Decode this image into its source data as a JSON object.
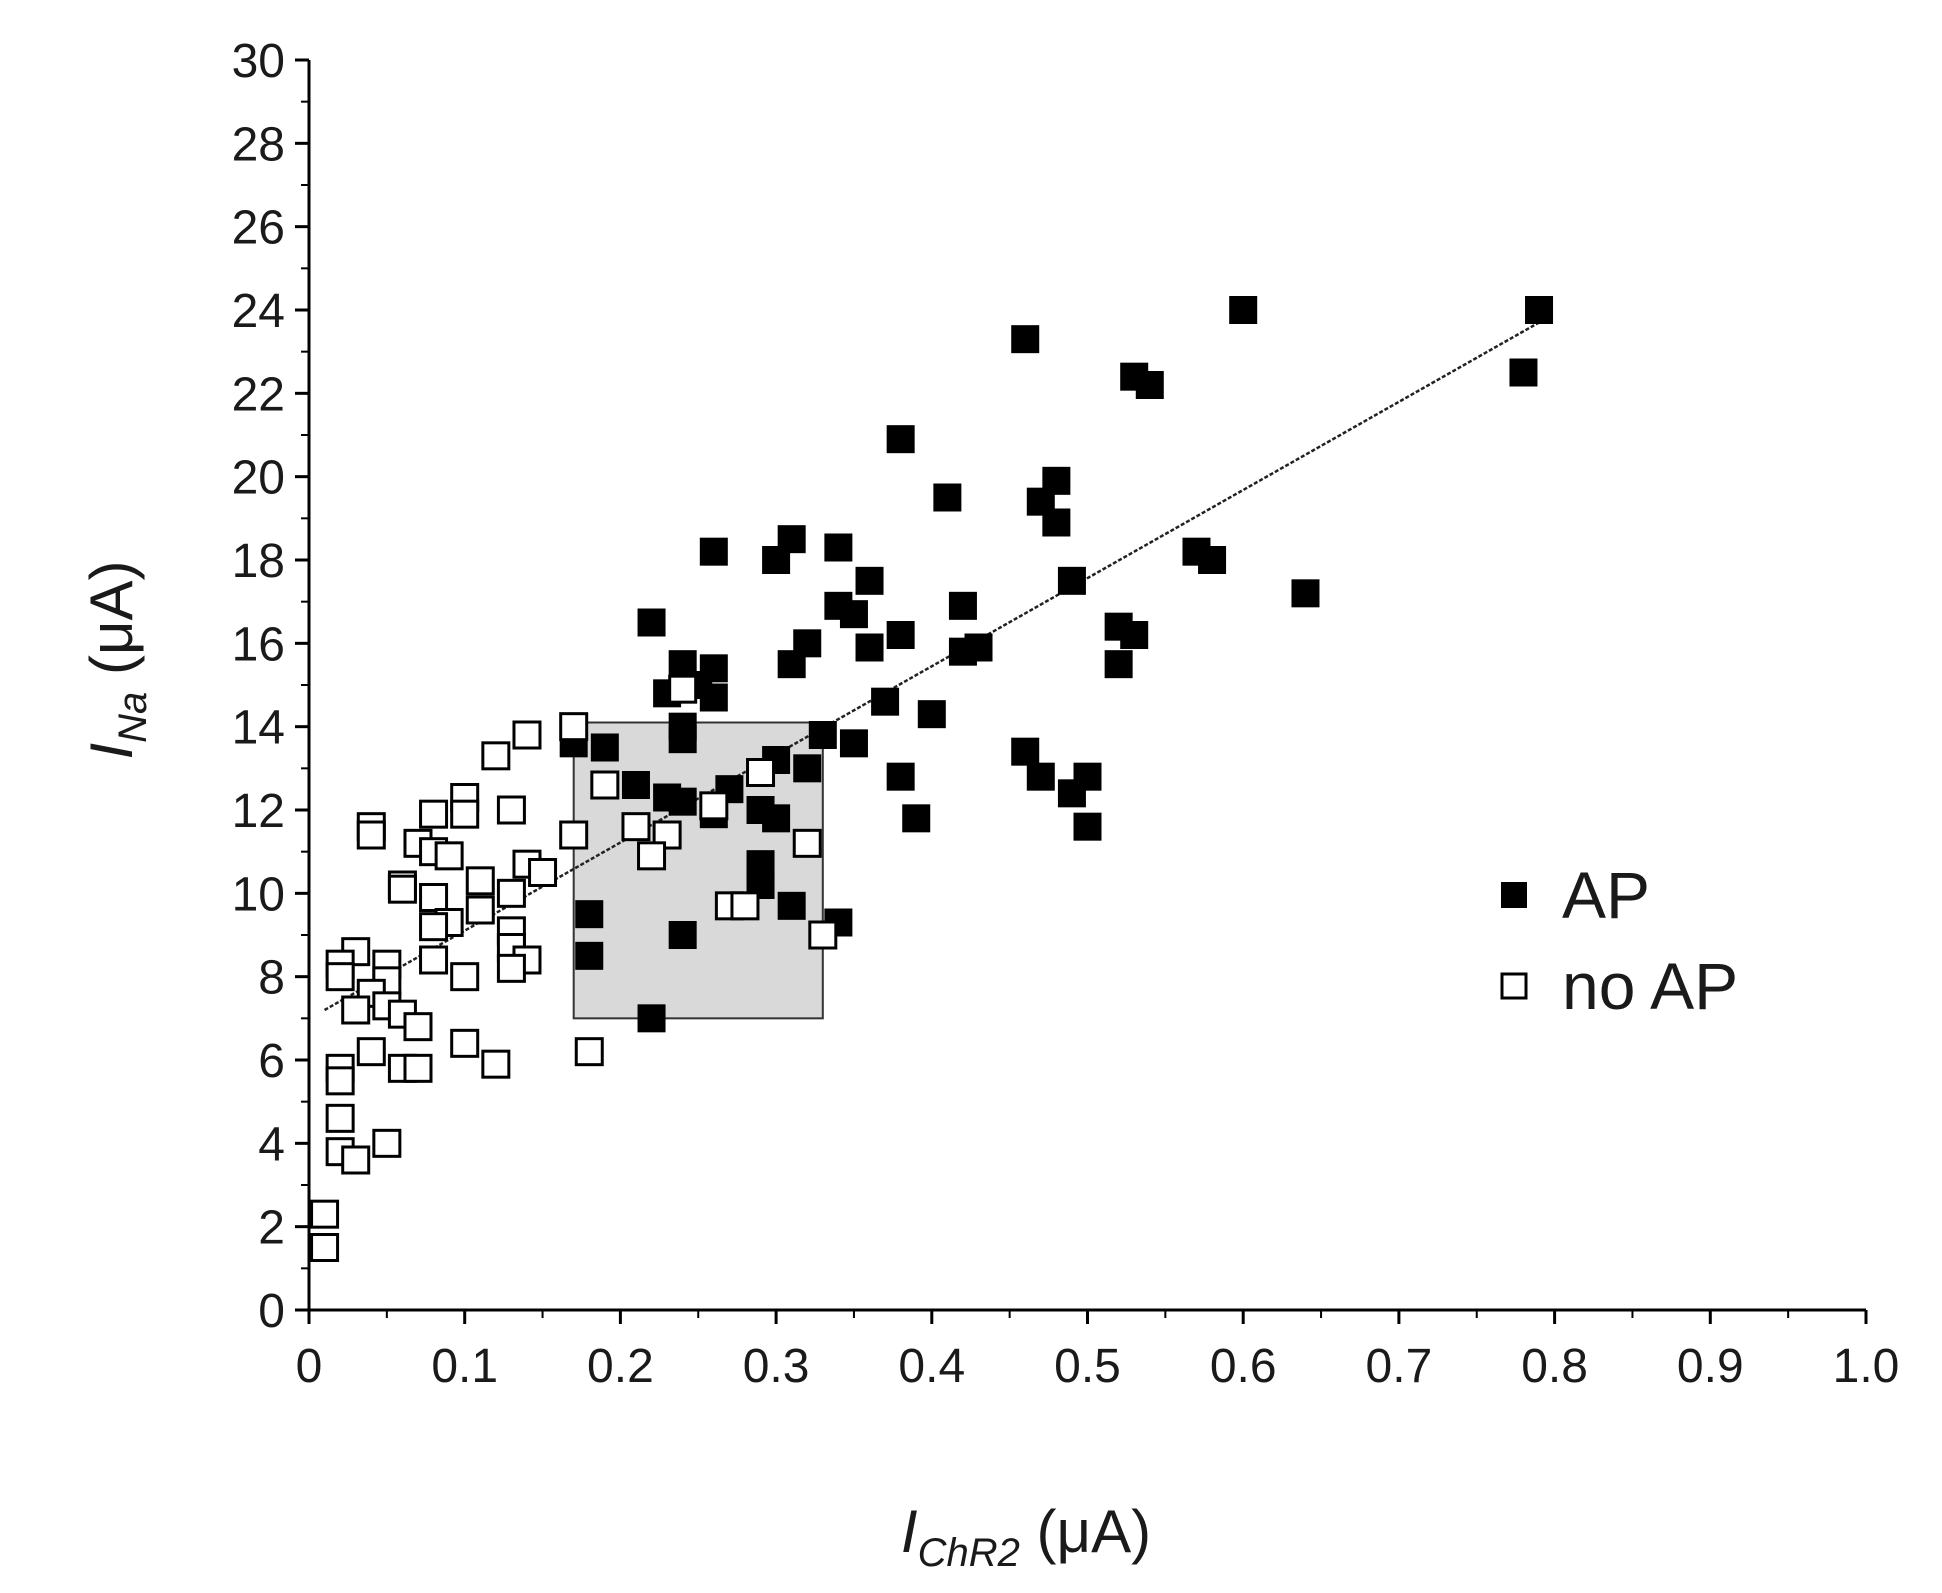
{
  "chart_data": {
    "type": "scatter",
    "xlabel": {
      "base": "I",
      "sub": "ChR2",
      "unit": " (μA)"
    },
    "ylabel": {
      "base": "I",
      "sub": "Na",
      "unit": " (μA)"
    },
    "xlim": [
      0,
      1.0
    ],
    "ylim": [
      0,
      30
    ],
    "x_ticks": [
      0,
      0.1,
      0.2,
      0.3,
      0.4,
      0.5,
      0.6,
      0.7,
      0.8,
      0.9,
      1.0
    ],
    "x_tick_labels": [
      "0",
      "0.1",
      "0.2",
      "0.3",
      "0.4",
      "0.5",
      "0.6",
      "0.7",
      "0.8",
      "0.9",
      "1.0"
    ],
    "y_ticks": [
      0,
      2,
      4,
      6,
      8,
      10,
      12,
      14,
      16,
      18,
      20,
      22,
      24,
      26,
      28,
      30
    ],
    "y_tick_labels": [
      "0",
      "2",
      "4",
      "6",
      "8",
      "10",
      "12",
      "14",
      "16",
      "18",
      "20",
      "22",
      "24",
      "26",
      "28",
      "30"
    ],
    "grid": false,
    "legend": {
      "position": "right",
      "entries": [
        "AP",
        "no AP"
      ]
    },
    "shaded_region": {
      "x": [
        0.17,
        0.33
      ],
      "y": [
        7.0,
        14.1
      ],
      "color": "#d9d9d9"
    },
    "fit_line": {
      "x": [
        0.01,
        0.79
      ],
      "y": [
        7.2,
        23.7
      ]
    },
    "colors": {
      "ap_fill": "#000000",
      "no_ap_fill": "#ffffff",
      "marker_edge": "#000000",
      "axis": "#000000"
    },
    "series": [
      {
        "name": "AP",
        "marker": "filled-square",
        "points": [
          [
            0.79,
            24.0
          ],
          [
            0.78,
            22.5
          ],
          [
            0.6,
            24.0
          ],
          [
            0.46,
            23.3
          ],
          [
            0.53,
            22.4
          ],
          [
            0.54,
            22.2
          ],
          [
            0.38,
            20.9
          ],
          [
            0.41,
            19.5
          ],
          [
            0.48,
            19.9
          ],
          [
            0.47,
            19.4
          ],
          [
            0.48,
            18.9
          ],
          [
            0.26,
            18.2
          ],
          [
            0.31,
            18.5
          ],
          [
            0.3,
            18.0
          ],
          [
            0.34,
            18.3
          ],
          [
            0.57,
            18.2
          ],
          [
            0.58,
            18.0
          ],
          [
            0.36,
            17.5
          ],
          [
            0.49,
            17.5
          ],
          [
            0.64,
            17.2
          ],
          [
            0.34,
            16.9
          ],
          [
            0.35,
            16.7
          ],
          [
            0.42,
            16.9
          ],
          [
            0.22,
            16.5
          ],
          [
            0.38,
            16.2
          ],
          [
            0.52,
            16.4
          ],
          [
            0.53,
            16.2
          ],
          [
            0.32,
            16.0
          ],
          [
            0.36,
            15.9
          ],
          [
            0.43,
            15.9
          ],
          [
            0.42,
            15.8
          ],
          [
            0.31,
            15.5
          ],
          [
            0.52,
            15.5
          ],
          [
            0.24,
            15.5
          ],
          [
            0.26,
            15.4
          ],
          [
            0.25,
            15.0
          ],
          [
            0.23,
            14.8
          ],
          [
            0.26,
            14.7
          ],
          [
            0.37,
            14.6
          ],
          [
            0.4,
            14.3
          ],
          [
            0.24,
            14.0
          ],
          [
            0.24,
            13.7
          ],
          [
            0.33,
            13.8
          ],
          [
            0.17,
            13.6
          ],
          [
            0.19,
            13.5
          ],
          [
            0.35,
            13.6
          ],
          [
            0.46,
            13.4
          ],
          [
            0.3,
            13.2
          ],
          [
            0.32,
            13.0
          ],
          [
            0.38,
            12.8
          ],
          [
            0.47,
            12.8
          ],
          [
            0.5,
            12.8
          ],
          [
            0.21,
            12.6
          ],
          [
            0.27,
            12.5
          ],
          [
            0.49,
            12.4
          ],
          [
            0.23,
            12.3
          ],
          [
            0.24,
            12.2
          ],
          [
            0.29,
            12.0
          ],
          [
            0.26,
            11.9
          ],
          [
            0.3,
            11.8
          ],
          [
            0.39,
            11.8
          ],
          [
            0.5,
            11.6
          ],
          [
            0.29,
            10.7
          ],
          [
            0.29,
            10.2
          ],
          [
            0.31,
            9.7
          ],
          [
            0.18,
            9.5
          ],
          [
            0.34,
            9.3
          ],
          [
            0.24,
            9.0
          ],
          [
            0.18,
            8.5
          ],
          [
            0.22,
            7.0
          ]
        ]
      },
      {
        "name": "no AP",
        "marker": "open-square",
        "points": [
          [
            0.17,
            14.0
          ],
          [
            0.14,
            13.8
          ],
          [
            0.12,
            13.3
          ],
          [
            0.19,
            12.6
          ],
          [
            0.1,
            12.3
          ],
          [
            0.13,
            12.0
          ],
          [
            0.08,
            11.9
          ],
          [
            0.1,
            11.9
          ],
          [
            0.04,
            11.6
          ],
          [
            0.21,
            11.6
          ],
          [
            0.04,
            11.4
          ],
          [
            0.17,
            11.4
          ],
          [
            0.23,
            11.4
          ],
          [
            0.07,
            11.2
          ],
          [
            0.32,
            11.2
          ],
          [
            0.26,
            12.1
          ],
          [
            0.08,
            11.0
          ],
          [
            0.09,
            10.9
          ],
          [
            0.22,
            10.9
          ],
          [
            0.14,
            10.7
          ],
          [
            0.15,
            10.5
          ],
          [
            0.11,
            10.3
          ],
          [
            0.06,
            10.2
          ],
          [
            0.06,
            10.1
          ],
          [
            0.13,
            10.0
          ],
          [
            0.08,
            9.9
          ],
          [
            0.11,
            9.6
          ],
          [
            0.27,
            9.7
          ],
          [
            0.28,
            9.7
          ],
          [
            0.09,
            9.3
          ],
          [
            0.08,
            9.2
          ],
          [
            0.13,
            9.1
          ],
          [
            0.33,
            9.0
          ],
          [
            0.13,
            8.7
          ],
          [
            0.03,
            8.6
          ],
          [
            0.02,
            8.3
          ],
          [
            0.05,
            8.3
          ],
          [
            0.14,
            8.4
          ],
          [
            0.08,
            8.4
          ],
          [
            0.13,
            8.2
          ],
          [
            0.1,
            8.0
          ],
          [
            0.02,
            8.0
          ],
          [
            0.05,
            7.9
          ],
          [
            0.04,
            7.6
          ],
          [
            0.05,
            7.3
          ],
          [
            0.03,
            7.2
          ],
          [
            0.06,
            7.1
          ],
          [
            0.07,
            6.8
          ],
          [
            0.1,
            6.4
          ],
          [
            0.04,
            6.2
          ],
          [
            0.18,
            6.2
          ],
          [
            0.12,
            5.9
          ],
          [
            0.06,
            5.8
          ],
          [
            0.07,
            5.8
          ],
          [
            0.02,
            5.8
          ],
          [
            0.02,
            5.5
          ],
          [
            0.02,
            4.6
          ],
          [
            0.05,
            4.0
          ],
          [
            0.02,
            3.8
          ],
          [
            0.03,
            3.6
          ],
          [
            0.01,
            2.3
          ],
          [
            0.01,
            1.5
          ],
          [
            0.24,
            14.9
          ],
          [
            0.29,
            12.9
          ]
        ]
      }
    ]
  }
}
